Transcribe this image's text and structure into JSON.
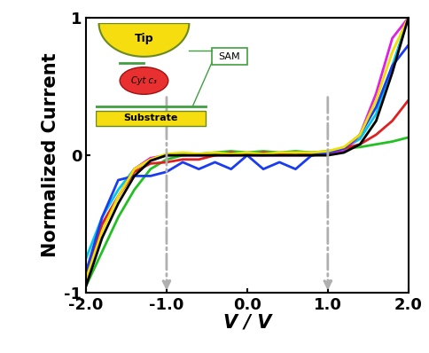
{
  "chart_data": {
    "type": "line",
    "x_label": "V / V",
    "y_label": "Normalized Current",
    "x": [
      -2.0,
      -1.8,
      -1.6,
      -1.4,
      -1.2,
      -1.0,
      -0.8,
      -0.6,
      -0.4,
      -0.2,
      0.0,
      0.2,
      0.4,
      0.6,
      0.8,
      1.0,
      1.2,
      1.4,
      1.6,
      1.8,
      2.0
    ],
    "series": [
      {
        "color": "#00c8e8",
        "values": [
          -0.75,
          -0.45,
          -0.25,
          -0.1,
          -0.03,
          0,
          0.01,
          0,
          0.01,
          0,
          0.01,
          0,
          0.01,
          0.02,
          0.02,
          0.02,
          0.05,
          0.12,
          0.3,
          0.65,
          1.0
        ]
      },
      {
        "color": "#e020e0",
        "values": [
          -0.9,
          -0.5,
          -0.3,
          -0.1,
          -0.02,
          0,
          0,
          0,
          0,
          0,
          0,
          0,
          0,
          0,
          0,
          0.01,
          0.03,
          0.15,
          0.45,
          0.85,
          1.0
        ]
      },
      {
        "color": "#22c022",
        "values": [
          -0.95,
          -0.7,
          -0.45,
          -0.25,
          -0.1,
          -0.03,
          0,
          0.01,
          0.02,
          0.03,
          0.02,
          0.03,
          0.02,
          0.03,
          0.02,
          0.03,
          0.05,
          0.06,
          0.08,
          0.1,
          0.13
        ]
      },
      {
        "color": "#e02020",
        "values": [
          -0.85,
          -0.5,
          -0.3,
          -0.12,
          -0.06,
          -0.05,
          -0.03,
          -0.03,
          0,
          0.02,
          0,
          0.02,
          0.01,
          0.02,
          0,
          0.02,
          0.05,
          0.08,
          0.15,
          0.25,
          0.4
        ]
      },
      {
        "color": "#1a3cf0",
        "values": [
          -0.85,
          -0.45,
          -0.18,
          -0.15,
          -0.15,
          -0.12,
          -0.05,
          -0.1,
          -0.05,
          -0.1,
          0,
          -0.1,
          -0.05,
          -0.1,
          0,
          0.02,
          0.05,
          0.15,
          0.35,
          0.65,
          0.8
        ]
      },
      {
        "color": "#f0e000",
        "values": [
          -0.9,
          -0.55,
          -0.3,
          -0.1,
          -0.03,
          0.01,
          0.02,
          0.01,
          0.02,
          0.01,
          0.02,
          0.01,
          0.02,
          0.02,
          0.02,
          0.03,
          0.06,
          0.15,
          0.4,
          0.75,
          1.0
        ]
      },
      {
        "color": "#000000",
        "values": [
          -0.95,
          -0.6,
          -0.35,
          -0.15,
          -0.04,
          0,
          0,
          0,
          0,
          0,
          0,
          0,
          0,
          0,
          0,
          0,
          0.02,
          0.08,
          0.25,
          0.6,
          1.0
        ]
      }
    ],
    "vlines": [
      -1.0,
      1.0
    ],
    "annotations": [
      "Tip",
      "Cyt c₃",
      "Substrate",
      "SAM"
    ],
    "xlim": [
      -2.0,
      2.0
    ],
    "xticks": [
      {
        "value": -2.0,
        "label": "-2.0"
      },
      {
        "value": -1.0,
        "label": "-1.0"
      },
      {
        "value": 0.0,
        "label": "0.0"
      },
      {
        "value": 1.0,
        "label": "1.0"
      },
      {
        "value": 2.0,
        "label": "2.0"
      }
    ],
    "ylim": [
      -1,
      1
    ],
    "yticks": [
      -1,
      0,
      1
    ],
    "grid": false
  }
}
